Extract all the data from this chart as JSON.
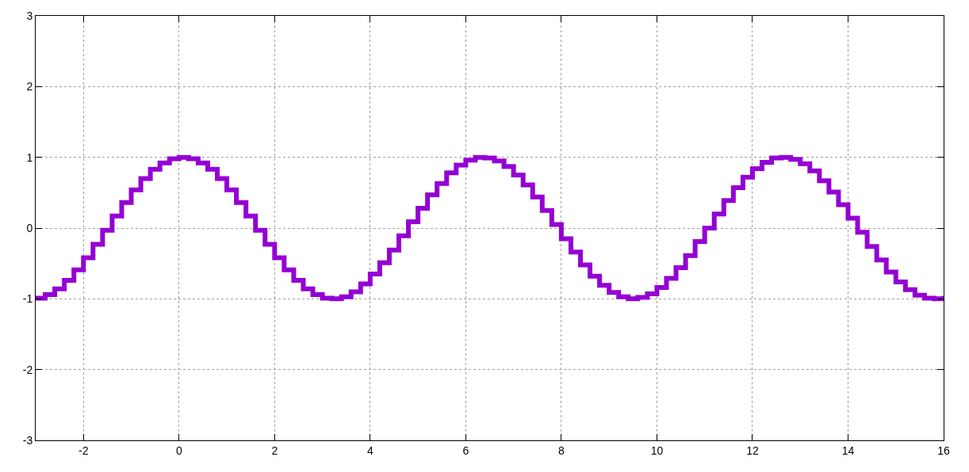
{
  "chart_data": {
    "type": "step",
    "xlim": [
      -3,
      16
    ],
    "ylim": [
      -3,
      3
    ],
    "xticks": [
      -2,
      0,
      2,
      4,
      6,
      8,
      10,
      12,
      14,
      16
    ],
    "yticks": [
      -3,
      -2,
      -1,
      0,
      1,
      2,
      3
    ],
    "grid": true,
    "line_style": "solid",
    "x": [
      -3,
      -2.8,
      -2.6,
      -2.4,
      -2.2,
      -2,
      -1.8,
      -1.6,
      -1.4,
      -1.2,
      -1,
      -0.8,
      -0.6,
      -0.4,
      -0.2,
      0,
      0.2,
      0.4,
      0.6,
      0.8,
      1,
      1.2,
      1.4,
      1.6,
      1.8,
      2,
      2.2,
      2.4,
      2.6,
      2.8,
      3,
      3.2,
      3.4,
      3.6,
      3.8,
      4,
      4.2,
      4.4,
      4.6,
      4.8,
      5,
      5.2,
      5.4,
      5.6,
      5.8,
      6,
      6.2,
      6.4,
      6.6,
      6.8,
      7,
      7.2,
      7.4,
      7.6,
      7.8,
      8,
      8.2,
      8.4,
      8.6,
      8.8,
      9,
      9.2,
      9.4,
      9.6,
      9.8,
      10,
      10.2,
      10.4,
      10.6,
      10.8,
      11,
      11.2,
      11.4,
      11.6,
      11.8,
      12,
      12.2,
      12.4,
      12.6,
      12.8,
      13,
      13.2,
      13.4,
      13.6,
      13.8,
      14,
      14.2,
      14.4,
      14.6,
      14.8,
      15,
      15.2,
      15.4,
      15.6,
      15.8,
      16
    ],
    "series": [
      {
        "color": "#9400d3",
        "values": [
          -0.99,
          -0.94,
          -0.86,
          -0.74,
          -0.59,
          -0.42,
          -0.23,
          -0.03,
          0.17,
          0.36,
          0.54,
          0.7,
          0.83,
          0.92,
          0.98,
          1.0,
          0.98,
          0.92,
          0.83,
          0.7,
          0.54,
          0.36,
          0.17,
          -0.03,
          -0.23,
          -0.42,
          -0.59,
          -0.74,
          -0.86,
          -0.94,
          -0.99,
          -1.0,
          -0.97,
          -0.9,
          -0.79,
          -0.65,
          -0.49,
          -0.31,
          -0.11,
          0.09,
          0.28,
          0.47,
          0.63,
          0.78,
          0.89,
          0.96,
          1.0,
          0.99,
          0.95,
          0.87,
          0.75,
          0.61,
          0.44,
          0.25,
          0.05,
          -0.15,
          -0.34,
          -0.52,
          -0.68,
          -0.81,
          -0.91,
          -0.97,
          -1.0,
          -0.98,
          -0.93,
          -0.84,
          -0.71,
          -0.56,
          -0.39,
          -0.19,
          0.0,
          0.2,
          0.39,
          0.57,
          0.72,
          0.84,
          0.93,
          0.99,
          1.0,
          0.97,
          0.91,
          0.81,
          0.67,
          0.51,
          0.33,
          0.14,
          -0.06,
          -0.26,
          -0.45,
          -0.62,
          -0.76,
          -0.87,
          -0.95,
          -0.99,
          -1.0,
          -0.96
        ]
      }
    ]
  }
}
